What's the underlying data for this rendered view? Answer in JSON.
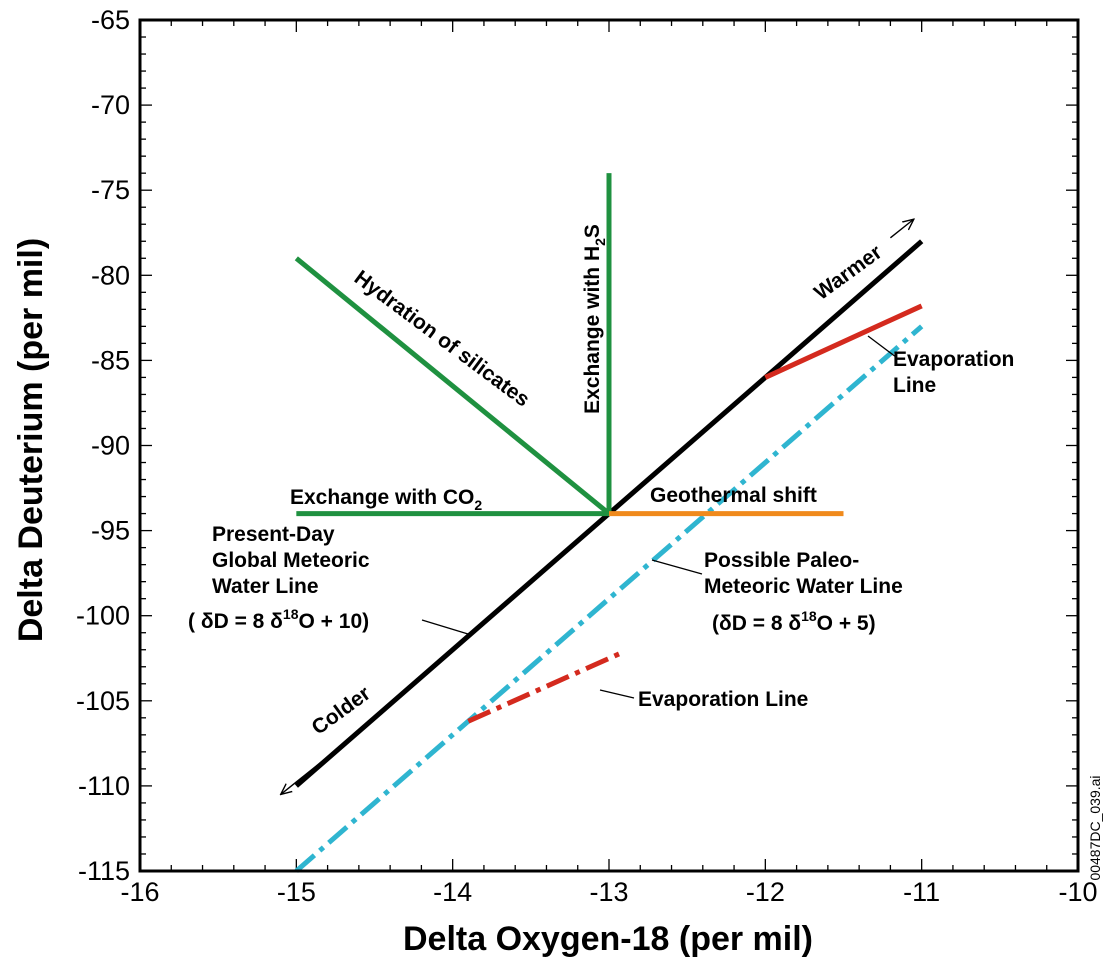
{
  "chart_data": {
    "type": "line",
    "xlabel": "Delta Oxygen-18 (per mil)",
    "ylabel": "Delta Deuterium (per mil)",
    "xlim": [
      -16,
      -10
    ],
    "ylim": [
      -115,
      -65
    ],
    "xticks": [
      -16,
      -15,
      -14,
      -13,
      -12,
      -11,
      -10
    ],
    "yticks": [
      -115,
      -110,
      -105,
      -100,
      -95,
      -90,
      -85,
      -80,
      -75,
      -70,
      -65
    ],
    "x_minor_step": 0.2,
    "y_minor_step": 1,
    "grid": false,
    "series": [
      {
        "key": "gmwl",
        "color": "#000000",
        "style": "solid",
        "points": [
          [
            -15,
            -110
          ],
          [
            -11,
            -78
          ]
        ]
      },
      {
        "key": "paleo",
        "color": "#2fb5d0",
        "style": "dashdot",
        "points": [
          [
            -15,
            -115
          ],
          [
            -11,
            -83
          ]
        ]
      },
      {
        "key": "evap-upper",
        "color": "#d42a1e",
        "style": "solid",
        "points": [
          [
            -12,
            -86
          ],
          [
            -11,
            -81.8
          ]
        ]
      },
      {
        "key": "evap-lower",
        "color": "#d42a1e",
        "style": "dashdot",
        "points": [
          [
            -13.9,
            -106.2
          ],
          [
            -12.9,
            -102.1
          ]
        ]
      },
      {
        "key": "hydration",
        "color": "#1f9140",
        "style": "solid",
        "points": [
          [
            -15,
            -79
          ],
          [
            -13,
            -94
          ]
        ]
      },
      {
        "key": "h2s",
        "color": "#1f9140",
        "style": "solid",
        "points": [
          [
            -13,
            -74
          ],
          [
            -13,
            -94
          ]
        ]
      },
      {
        "key": "co2",
        "color": "#1f9140",
        "style": "solid",
        "points": [
          [
            -15,
            -94
          ],
          [
            -13,
            -94
          ]
        ]
      },
      {
        "key": "geothermal",
        "color": "#f08a1c",
        "style": "solid",
        "points": [
          [
            -13,
            -94
          ],
          [
            -11.5,
            -94
          ]
        ]
      }
    ],
    "arrows": [
      {
        "key": "warmer",
        "from": [
          -11.2,
          -77.8
        ],
        "to": [
          -11.05,
          -76.7
        ]
      },
      {
        "key": "colder",
        "from": [
          -14.8,
          -108.3
        ],
        "to": [
          -15.1,
          -110.5
        ]
      }
    ],
    "annotations": {
      "warmer": "Warmer",
      "colder": "Colder",
      "hydration": "Hydration of silicates",
      "h2s_text": "Exchange with H",
      "h2s_sub": "2",
      "h2s_tail": "S",
      "co2_text": "Exchange with CO",
      "co2_sub": "2",
      "geothermal": "Geothermal shift",
      "evap_upper_1": "Evaporation",
      "evap_upper_2": "Line",
      "evap_lower": "Evaporation Line",
      "gmwl_1": "Present-Day",
      "gmwl_2": "Global Meteoric",
      "gmwl_3": "Water Line",
      "gmwl_eq_open": "( δD = 8 δ",
      "gmwl_eq_sup": "18",
      "gmwl_eq_close": "O + 10)",
      "paleo_1": "Possible Paleo-",
      "paleo_2": "Meteoric Water Line",
      "paleo_eq_open": "(δD = 8 δ",
      "paleo_eq_sup": "18",
      "paleo_eq_close": "O + 5)"
    },
    "side_note": "00487DC_039.ai"
  }
}
